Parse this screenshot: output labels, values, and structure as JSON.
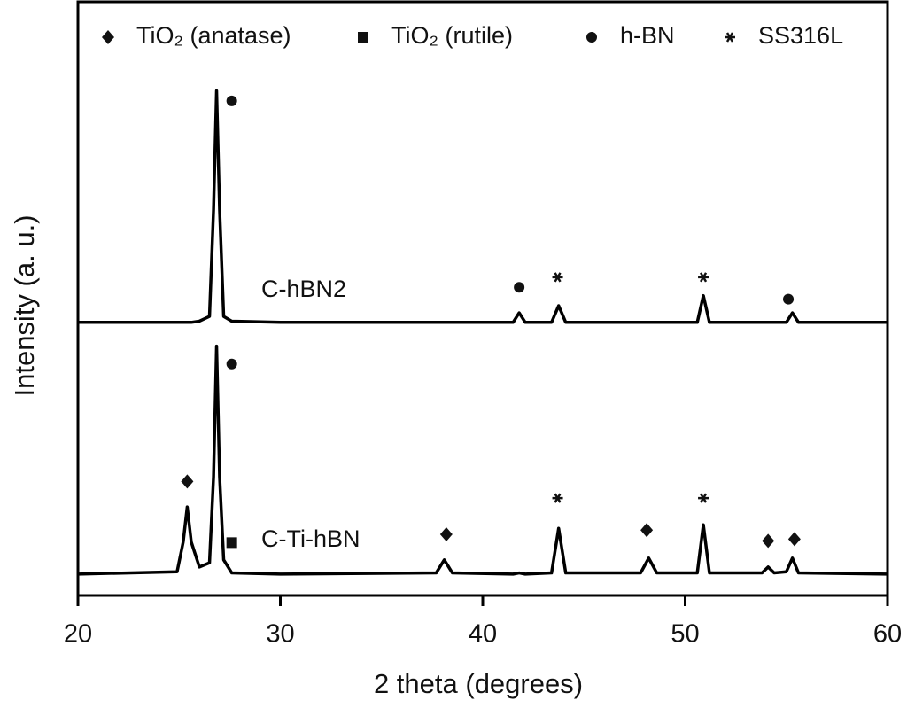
{
  "chart_data": {
    "type": "line",
    "x_label": "2 theta (degrees)",
    "y_label": "Intensity (a. u.)",
    "xlim": [
      20,
      60
    ],
    "xticks": [
      20,
      30,
      40,
      50,
      60
    ],
    "ylim": [
      0,
      100
    ],
    "x": [
      20,
      24.9,
      25.2,
      25.4,
      25.6,
      26.0,
      26.5,
      26.7,
      26.85,
      27.0,
      27.2,
      27.6,
      30,
      37.7,
      38.1,
      38.5,
      41.5,
      41.8,
      42.1,
      43.4,
      43.75,
      44.1,
      47.8,
      48.2,
      48.6,
      50.6,
      50.9,
      51.2,
      53.8,
      54.1,
      54.4,
      55.0,
      55.3,
      55.6,
      60
    ],
    "series": [
      {
        "name": "C-hBN2",
        "color": "#000000",
        "values": [
          46,
          46,
          46,
          46,
          46,
          46.2,
          47,
          65,
          85,
          65,
          47,
          46.2,
          46,
          46,
          46,
          46,
          46,
          47.6,
          46,
          46,
          48.8,
          46,
          46,
          46,
          46,
          46,
          50.5,
          46,
          46,
          46,
          46,
          46,
          47.6,
          46,
          46
        ]
      },
      {
        "name": "C-Ti-hBN",
        "color": "#000000",
        "values": [
          3.6,
          4.0,
          9,
          14.9,
          9,
          4.8,
          5.5,
          20,
          42,
          20,
          6,
          3.8,
          3.6,
          3.8,
          6,
          3.8,
          3.6,
          3.8,
          3.6,
          3.8,
          11.3,
          3.8,
          3.8,
          6.3,
          3.8,
          3.8,
          11.9,
          3.8,
          3.8,
          4.8,
          3.8,
          4,
          6.3,
          3.8,
          3.6
        ]
      }
    ],
    "phases": [
      {
        "name": "TiO₂ (anatase)",
        "marker": "diamond",
        "x": [
          25.4,
          38.2,
          48.1,
          54.1,
          55.4
        ],
        "y": [
          19.2,
          10.3,
          11,
          9.2,
          9.5
        ]
      },
      {
        "name": "TiO₂ (rutile)",
        "marker": "square",
        "x": [
          27.6
        ],
        "y": [
          8.9
        ]
      },
      {
        "name": "h-BN",
        "marker": "circle",
        "x": [
          27.6,
          41.8,
          55.1,
          27.6
        ],
        "y": [
          83.3,
          51.9,
          49.9,
          39
        ]
      },
      {
        "name": "SS316L",
        "marker": "asterisk",
        "x": [
          43.7,
          50.9,
          43.7,
          50.9
        ],
        "y": [
          53.6,
          53.6,
          16.4,
          16.4
        ]
      }
    ]
  }
}
